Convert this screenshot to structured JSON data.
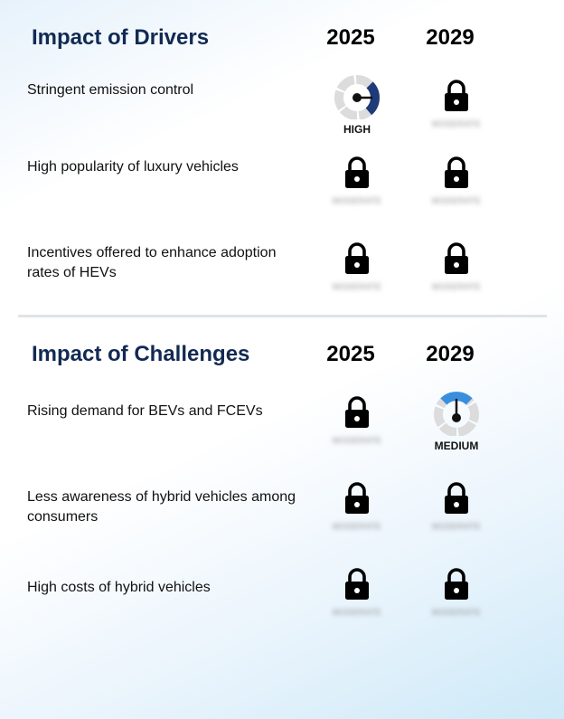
{
  "drivers": {
    "title": "Impact of Drivers",
    "year_1": "2025",
    "year_2": "2029",
    "rows": [
      {
        "label": "Stringent emission control",
        "y2025": {
          "type": "gauge",
          "level": "HIGH",
          "color": "#1e3a78"
        },
        "y2029": {
          "type": "lock"
        }
      },
      {
        "label": "High popularity of luxury vehicles",
        "y2025": {
          "type": "lock"
        },
        "y2029": {
          "type": "lock"
        }
      },
      {
        "label": "Incentives offered to enhance adoption rates of HEVs",
        "y2025": {
          "type": "lock"
        },
        "y2029": {
          "type": "lock"
        }
      }
    ]
  },
  "challenges": {
    "title": "Impact of Challenges",
    "year_1": "2025",
    "year_2": "2029",
    "rows": [
      {
        "label": "Rising demand for BEVs and FCEVs",
        "y2025": {
          "type": "lock"
        },
        "y2029": {
          "type": "gauge",
          "level": "MEDIUM",
          "color": "#3a8fdc"
        }
      },
      {
        "label": "Less awareness of hybrid vehicles among consumers",
        "y2025": {
          "type": "lock"
        },
        "y2029": {
          "type": "lock"
        }
      },
      {
        "label": "High costs of hybrid vehicles",
        "y2025": {
          "type": "lock"
        },
        "y2029": {
          "type": "lock"
        }
      }
    ]
  },
  "colors": {
    "title": "#122a52",
    "gauge_track": "#dcdcdc",
    "high": "#1e3a78",
    "medium": "#3a8fdc"
  },
  "icons": {
    "lock": "padlock-icon",
    "gauge": "gauge-icon"
  }
}
